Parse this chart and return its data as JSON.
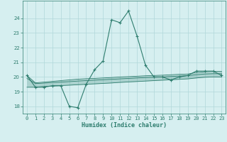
{
  "title": "",
  "xlabel": "Humidex (Indice chaleur)",
  "x": [
    0,
    1,
    2,
    3,
    4,
    5,
    6,
    7,
    8,
    9,
    10,
    11,
    12,
    13,
    14,
    15,
    16,
    17,
    18,
    19,
    20,
    21,
    22,
    23
  ],
  "y_main": [
    20.1,
    19.3,
    19.3,
    19.4,
    19.4,
    18.0,
    17.9,
    19.5,
    20.5,
    21.1,
    23.9,
    23.7,
    24.5,
    22.8,
    20.8,
    20.0,
    20.0,
    19.8,
    20.0,
    20.1,
    20.4,
    20.4,
    20.4,
    20.1
  ],
  "y_fill_top": [
    20.1,
    19.6,
    19.65,
    19.7,
    19.75,
    19.8,
    19.85,
    19.88,
    19.9,
    19.93,
    19.96,
    20.0,
    20.02,
    20.05,
    20.08,
    20.1,
    20.12,
    20.15,
    20.18,
    20.2,
    20.3,
    20.35,
    20.38,
    20.38
  ],
  "y_fill_mid": [
    19.9,
    19.55,
    19.58,
    19.62,
    19.65,
    19.68,
    19.72,
    19.75,
    19.78,
    19.81,
    19.84,
    19.87,
    19.9,
    19.93,
    19.96,
    19.98,
    20.0,
    20.03,
    20.06,
    20.09,
    20.15,
    20.2,
    20.22,
    20.22
  ],
  "y_fill_bot": [
    19.3,
    19.3,
    19.35,
    19.38,
    19.41,
    19.44,
    19.47,
    19.5,
    19.53,
    19.56,
    19.59,
    19.63,
    19.66,
    19.69,
    19.72,
    19.75,
    19.78,
    19.81,
    19.84,
    19.87,
    19.93,
    19.98,
    20.0,
    20.0
  ],
  "line_color": "#2e7d6e",
  "bg_color": "#d6eff0",
  "grid_color": "#b0d8da",
  "ylim": [
    17.5,
    25.2
  ],
  "xlim": [
    -0.5,
    23.5
  ],
  "yticks": [
    18,
    19,
    20,
    21,
    22,
    23,
    24
  ],
  "xticks": [
    0,
    1,
    2,
    3,
    4,
    5,
    6,
    7,
    8,
    9,
    10,
    11,
    12,
    13,
    14,
    15,
    16,
    17,
    18,
    19,
    20,
    21,
    22,
    23
  ]
}
